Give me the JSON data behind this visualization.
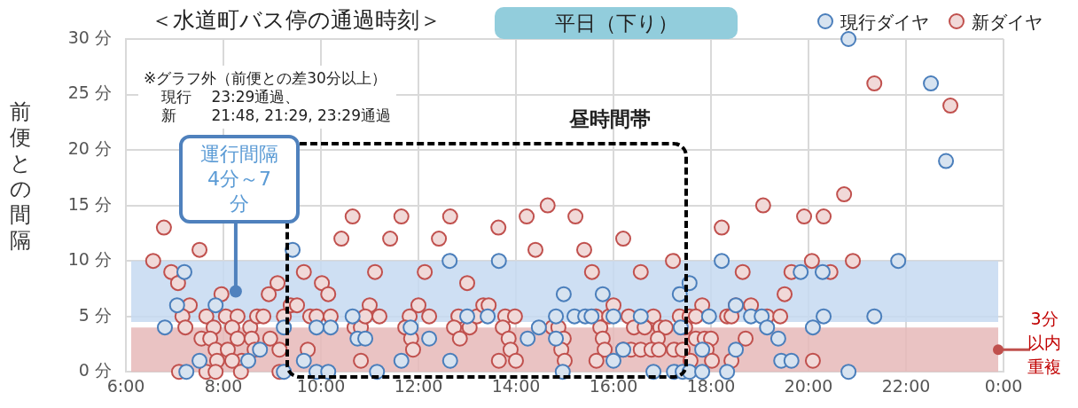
{
  "chart_data": {
    "type": "scatter",
    "title": "＜水道町バス停の通過時刻＞",
    "subtitle": "平日（下り）",
    "ylabel": "前便との間隔",
    "xlim": [
      6,
      24
    ],
    "xticks": [
      {
        "value": 6,
        "label": "6:00"
      },
      {
        "value": 8,
        "label": "8:00"
      },
      {
        "value": 10,
        "label": "10:00"
      },
      {
        "value": 12,
        "label": "12:00"
      },
      {
        "value": 14,
        "label": "14:00"
      },
      {
        "value": 16,
        "label": "16:00"
      },
      {
        "value": 18,
        "label": "18:00"
      },
      {
        "value": 20,
        "label": "20:00"
      },
      {
        "value": 22,
        "label": "22:00"
      },
      {
        "value": 24,
        "label": "0:00"
      }
    ],
    "ylim": [
      0,
      30
    ],
    "yticks": [
      {
        "value": 0,
        "label": "0 分"
      },
      {
        "value": 5,
        "label": "5 分"
      },
      {
        "value": 10,
        "label": "10 分"
      },
      {
        "value": 15,
        "label": "15 分"
      },
      {
        "value": 20,
        "label": "20 分"
      },
      {
        "value": 25,
        "label": "25 分"
      },
      {
        "value": 30,
        "label": "30 分"
      }
    ],
    "grid": true,
    "legend": "top right",
    "marker": "circle",
    "bands": [
      {
        "axis": "y",
        "from": 0,
        "to": 4,
        "label": "3分以内重複",
        "color": "#e6b9b8"
      },
      {
        "axis": "y",
        "from": 4.5,
        "to": 10,
        "label": "運行間隔4分～7分",
        "color": "#c5d9f1"
      }
    ],
    "annotations": [
      "※グラフ外（前便との差30分以上）",
      "現行　 23:29通過、",
      "新　　 21:48, 21:29, 23:29通過",
      "昼時間帯"
    ],
    "series": [
      {
        "name": "現行ダイヤ",
        "color": "#4a7ebb",
        "x": [
          7.2,
          7.05,
          6.8,
          7.84,
          7.51,
          7.24,
          8.51,
          8.75,
          9.42,
          9.24,
          9.24,
          9.65,
          9.91,
          10.15,
          9.91,
          10.2,
          10.65,
          10.75,
          10.91,
          11.15,
          12.64,
          13.65,
          14.98,
          15.78,
          14.82,
          15.2,
          15.42,
          15.55,
          16.0,
          16.56,
          13.0,
          13.42,
          12.22,
          14.24,
          14.47,
          14.82,
          11.65,
          12.65,
          16.0,
          14.96,
          16.2,
          11.84,
          17.56,
          17.36,
          18.22,
          19.84,
          20.29,
          21.84,
          18.51,
          17.96,
          18.82,
          19.04,
          20.31,
          21.35,
          17.38,
          19.15,
          20.09,
          19.38,
          18.51,
          17.82,
          19.44,
          19.65,
          16.82,
          17.24,
          17.42,
          17.56,
          17.82,
          18.33,
          20.82,
          20.82,
          22.51,
          22.82
        ],
        "values": [
          9,
          6,
          4,
          6,
          1,
          0,
          1,
          2,
          11,
          4,
          0,
          1,
          0,
          0,
          4,
          4,
          5,
          3,
          3,
          0,
          10,
          10,
          7,
          7,
          5,
          5,
          5,
          5,
          5,
          5,
          5,
          5,
          3,
          3,
          4,
          3,
          1,
          1,
          1,
          0,
          2,
          4,
          8,
          7,
          10,
          9,
          9,
          10,
          6,
          5,
          5,
          5,
          5,
          5,
          4,
          4,
          4,
          3,
          2,
          2,
          1,
          1,
          0,
          0,
          0,
          0,
          0,
          0,
          0,
          30,
          26,
          19
        ]
      },
      {
        "name": "新ダイヤ",
        "color": "#c0504d",
        "x": [
          6.78,
          7.51,
          6.56,
          6.93,
          7.07,
          7.96,
          7.31,
          7.16,
          7.22,
          7.65,
          7.8,
          7.55,
          7.73,
          7.84,
          8.09,
          8.05,
          8.29,
          8.18,
          8.29,
          8.55,
          8.58,
          8.64,
          8.38,
          8.18,
          7.87,
          7.09,
          7.65,
          7.84,
          8.36,
          9.15,
          8.69,
          8.82,
          8.93,
          9.11,
          8.96,
          9.15,
          9.24,
          9.38,
          9.51,
          9.65,
          9.73,
          9.78,
          9.91,
          10.02,
          10.15,
          10.2,
          10.42,
          10.65,
          10.69,
          10.82,
          10.82,
          11.0,
          10.91,
          11.2,
          11.11,
          11.42,
          11.65,
          12.65,
          12.42,
          13.64,
          14.22,
          14.65,
          15.22,
          14.4,
          15.4,
          16.2,
          12.13,
          13.0,
          15.56,
          16.56,
          11.82,
          12.0,
          12.22,
          11.73,
          11.85,
          11.89,
          12.82,
          12.73,
          12.85,
          13.05,
          13.2,
          13.33,
          13.44,
          13.78,
          13.98,
          13.73,
          13.85,
          13.89,
          13.65,
          14.0,
          14.75,
          14.87,
          14.98,
          14.93,
          15.0,
          15.64,
          15.91,
          16.0,
          15.73,
          15.78,
          15.82,
          15.65,
          16.31,
          16.42,
          16.2,
          16.36,
          16.56,
          16.64,
          19.07,
          18.22,
          19.91,
          20.31,
          20.73,
          17.22,
          18.65,
          19.65,
          20.07,
          20.45,
          20.91,
          19.51,
          17.82,
          18.51,
          18.82,
          16.82,
          17.36,
          17.56,
          17.69,
          18.33,
          18.42,
          19.15,
          19.42,
          16.96,
          17.07,
          17.47,
          16.91,
          17.69,
          17.87,
          18.0,
          18.71,
          16.78,
          16.93,
          17.24,
          17.42,
          17.91,
          17.58,
          18.02,
          18.42,
          20.09,
          21.35,
          22.91
        ],
        "values": [
          13,
          11,
          10,
          9,
          8,
          7,
          6,
          5,
          4,
          5,
          4,
          3,
          3,
          2,
          2,
          5,
          5,
          4,
          3,
          4,
          3,
          2,
          1,
          1,
          1,
          0,
          0,
          0,
          0,
          0,
          5,
          5,
          7,
          8,
          3,
          2,
          5,
          6,
          6,
          9,
          2,
          5,
          5,
          8,
          7,
          5,
          12,
          14,
          4,
          4,
          1,
          6,
          5,
          5,
          9,
          12,
          14,
          14,
          12,
          13,
          14,
          15,
          14,
          11,
          11,
          12,
          9,
          8,
          9,
          9,
          5,
          6,
          5,
          4,
          3,
          2,
          5,
          4,
          3,
          4,
          5,
          6,
          6,
          5,
          5,
          4,
          3,
          2,
          1,
          1,
          4,
          4,
          3,
          2,
          1,
          5,
          5,
          6,
          4,
          3,
          2,
          1,
          5,
          4,
          2,
          2,
          2,
          4,
          15,
          13,
          14,
          14,
          16,
          10,
          9,
          9,
          10,
          9,
          10,
          7,
          6,
          6,
          6,
          5,
          5,
          5,
          5,
          5,
          5,
          5,
          5,
          4,
          4,
          4,
          3,
          3,
          3,
          3,
          3,
          2,
          2,
          2,
          2,
          2,
          1,
          1,
          1,
          1,
          26,
          24
        ]
      }
    ]
  }
}
